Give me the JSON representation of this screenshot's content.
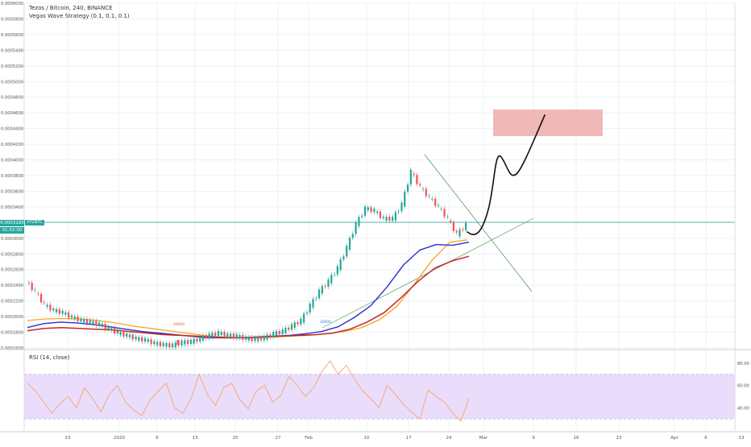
{
  "header": {
    "title": "Tezos / Bitcoin, 240, BINANCE",
    "indicator": "Vegas Wave Strategy (0.1, 0.1, 0.1)"
  },
  "price_tag": {
    "value": "0.0003185",
    "countdown": "01:52:00",
    "symbol": "XTZBTC"
  },
  "rsi_label": "RSI (14, close)",
  "colors": {
    "up": "#26a69a",
    "down": "#ef5350",
    "ema_orange": "#f5a623",
    "ema_blue": "#2f2fd0",
    "ema_red": "#c62828",
    "rsi_line": "#f7a36b",
    "rsi_band": "#e9ddfb",
    "target_box": "#f1b8b8"
  },
  "chart_data": [
    {
      "type": "line",
      "title": "Tezos / Bitcoin, 240, BINANCE",
      "y_ticks": [
        "0.0006000",
        "0.0005800",
        "0.0005600",
        "0.0005400",
        "0.0005200",
        "0.0005000",
        "0.0004800",
        "0.0004600",
        "0.0004400",
        "0.0004200",
        "0.0004000",
        "0.0003800",
        "0.0003600",
        "0.0003400",
        "0.0003200",
        "0.0003000",
        "0.0002800",
        "0.0002600",
        "0.0002400",
        "0.0002200",
        "0.0002000",
        "0.0001800",
        "0.0001600"
      ],
      "ylim": [
        0.00016,
        0.0006
      ],
      "x_ticks": [
        "23",
        "2020",
        "6",
        "13",
        "20",
        "27",
        "Feb",
        "10",
        "17",
        "24",
        "Mar",
        "9",
        "16",
        "23",
        "Apr",
        "6",
        "13"
      ],
      "grid": true,
      "series": [
        {
          "role": "price",
          "values": [
            0.000245,
            0.000232,
            0.000215,
            0.000208,
            0.000205,
            0.000199,
            0.000195,
            0.000193,
            0.00019,
            0.000185,
            0.000179,
            0.000176,
            0.000172,
            0.00017,
            0.000166,
            0.000164,
            0.000163,
            0.000167,
            0.000168,
            0.000172,
            0.000176,
            0.000179,
            0.000176,
            0.000175,
            0.000172,
            0.000171,
            0.000173,
            0.000178,
            0.000181,
            0.000188,
            0.000195,
            0.000214,
            0.000232,
            0.000245,
            0.000262,
            0.000288,
            0.000318,
            0.000338,
            0.000335,
            0.000325,
            0.000325,
            0.000343,
            0.000385,
            0.000365,
            0.000352,
            0.00034,
            0.000325,
            0.000305,
            0.000317
          ]
        },
        {
          "role": "ema_orange",
          "values": [
            0.000195,
            0.000197,
            0.0001975,
            0.000197,
            0.000195,
            0.000192,
            0.000188,
            0.000185,
            0.000182,
            0.000179,
            0.000176,
            0.000174,
            0.000173,
            0.000173,
            0.000174,
            0.000175,
            0.000176,
            0.000178,
            0.000181,
            0.000186,
            0.000196,
            0.000213,
            0.000242,
            0.000272,
            0.000295,
            0.000298
          ]
        },
        {
          "role": "ema_blue",
          "values": [
            0.000186,
            0.000191,
            0.000193,
            0.000192,
            0.00019,
            0.000187,
            0.000184,
            0.000181,
            0.000179,
            0.000177,
            0.000175,
            0.000173,
            0.000173,
            0.000173,
            0.000174,
            0.000175,
            0.000176,
            0.000178,
            0.000181,
            0.000187,
            0.000199,
            0.000214,
            0.000238,
            0.000266,
            0.000285,
            0.000292,
            0.000291,
            0.000295
          ]
        },
        {
          "role": "ema_red",
          "values": [
            0.000182,
            0.000185,
            0.000186,
            0.000185,
            0.000184,
            0.000183,
            0.000181,
            0.000179,
            0.000177,
            0.000176,
            0.000175,
            0.000174,
            0.000173,
            0.000173,
            0.000174,
            0.000175,
            0.000176,
            0.000177,
            0.000179,
            0.000184,
            0.000193,
            0.000205,
            0.000224,
            0.000245,
            0.000262,
            0.000271,
            0.000277
          ]
        }
      ],
      "annotations": [
        {
          "type": "marker",
          "text": "30000",
          "color": "#ef5350"
        },
        {
          "type": "marker",
          "text": "30000",
          "color": "#1e88e5"
        }
      ]
    },
    {
      "type": "line",
      "title": "RSI (14, close)",
      "y_ticks": [
        "80.00",
        "60.00",
        "40.00"
      ],
      "ylim": [
        20,
        90
      ],
      "band": [
        30,
        70
      ],
      "series": [
        {
          "role": "rsi",
          "values": [
            62,
            55,
            45,
            35,
            44,
            50,
            40,
            58,
            48,
            36,
            52,
            60,
            45,
            38,
            33,
            47,
            55,
            62,
            40,
            35,
            48,
            70,
            52,
            42,
            58,
            62,
            47,
            39,
            55,
            60,
            45,
            51,
            68,
            60,
            50,
            58,
            72,
            82,
            70,
            78,
            66,
            55,
            48,
            40,
            60,
            52,
            43,
            36,
            30,
            56,
            50,
            45,
            35,
            28,
            48
          ]
        }
      ]
    }
  ]
}
